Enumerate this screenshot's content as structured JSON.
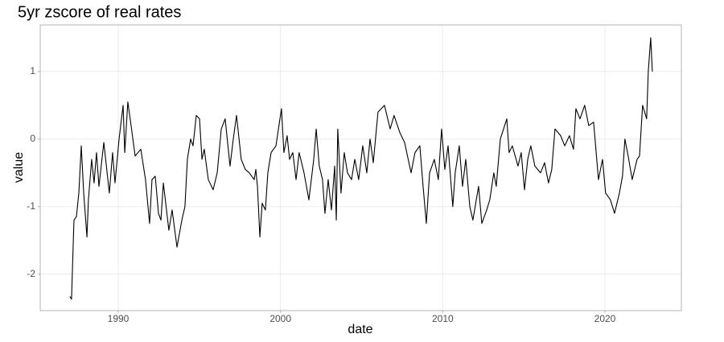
{
  "chart_data": {
    "type": "line",
    "title": "5yr zscore of real rates",
    "x_label": "date",
    "y_label": "value",
    "x": [
      1987.02,
      1987.12,
      1987.27,
      1987.42,
      1987.57,
      1987.72,
      1987.87,
      1988.07,
      1988.16,
      1988.36,
      1988.51,
      1988.66,
      1988.81,
      1989.11,
      1989.45,
      1989.65,
      1989.8,
      1990.05,
      1990.3,
      1990.4,
      1990.59,
      1990.79,
      1991.04,
      1991.39,
      1991.68,
      1991.93,
      1992.08,
      1992.28,
      1992.48,
      1992.63,
      1992.78,
      1993.12,
      1993.32,
      1993.62,
      1993.92,
      1994.11,
      1994.26,
      1994.46,
      1994.61,
      1994.81,
      1995.01,
      1995.16,
      1995.3,
      1995.55,
      1995.85,
      1996.1,
      1996.35,
      1996.59,
      1996.89,
      1997.09,
      1997.29,
      1997.58,
      1997.83,
      1998.08,
      1998.38,
      1998.48,
      1998.58,
      1998.73,
      1998.87,
      1999.07,
      1999.22,
      1999.42,
      1999.72,
      2000.06,
      2000.21,
      2000.41,
      2000.56,
      2000.76,
      2000.96,
      2001.15,
      2001.45,
      2001.75,
      2002.05,
      2002.2,
      2002.39,
      2002.59,
      2002.74,
      2002.94,
      2003.14,
      2003.34,
      2003.44,
      2003.53,
      2003.73,
      2003.93,
      2004.13,
      2004.38,
      2004.58,
      2004.82,
      2005.07,
      2005.32,
      2005.52,
      2005.72,
      2006.01,
      2006.41,
      2006.76,
      2007.0,
      2007.35,
      2007.65,
      2008.05,
      2008.29,
      2008.59,
      2008.79,
      2008.99,
      2009.19,
      2009.48,
      2009.73,
      2009.93,
      2010.13,
      2010.33,
      2010.62,
      2010.77,
      2011.02,
      2011.22,
      2011.42,
      2011.67,
      2011.86,
      2012.21,
      2012.41,
      2012.71,
      2012.9,
      2013.15,
      2013.3,
      2013.55,
      2013.95,
      2014.09,
      2014.29,
      2014.64,
      2014.84,
      2015.04,
      2015.24,
      2015.43,
      2015.68,
      2016.03,
      2016.28,
      2016.52,
      2016.72,
      2016.92,
      2017.27,
      2017.52,
      2017.81,
      2018.06,
      2018.21,
      2018.46,
      2018.75,
      2019.0,
      2019.3,
      2019.6,
      2019.85,
      2020.04,
      2020.34,
      2020.59,
      2020.89,
      2021.08,
      2021.23,
      2021.43,
      2021.68,
      2021.98,
      2022.13,
      2022.32,
      2022.57,
      2022.67,
      2022.82,
      2022.92
    ],
    "series": [
      {
        "color": "#000000",
        "values": [
          -2.33,
          -2.37,
          -1.2,
          -1.15,
          -0.8,
          -0.1,
          -0.8,
          -1.45,
          -0.9,
          -0.3,
          -0.65,
          -0.2,
          -0.7,
          -0.05,
          -0.8,
          -0.2,
          -0.65,
          0,
          0.5,
          -0.2,
          0.55,
          0.2,
          -0.25,
          -0.15,
          -0.6,
          -1.25,
          -0.6,
          -0.55,
          -1.1,
          -1.2,
          -0.65,
          -1.35,
          -1.05,
          -1.6,
          -1.2,
          -1.0,
          -0.3,
          0,
          -0.1,
          0.35,
          0.3,
          -0.3,
          -0.15,
          -0.6,
          -0.75,
          -0.5,
          0.15,
          0.3,
          -0.4,
          0,
          0.35,
          -0.3,
          -0.45,
          -0.5,
          -0.6,
          -0.45,
          -0.7,
          -1.45,
          -0.95,
          -1.05,
          -0.5,
          -0.2,
          -0.1,
          0.45,
          -0.2,
          0.05,
          -0.3,
          -0.2,
          -0.6,
          -0.2,
          -0.5,
          -0.9,
          -0.3,
          0.15,
          -0.4,
          -0.6,
          -1.1,
          -0.6,
          -1.05,
          -0.4,
          -1.2,
          0.15,
          -0.8,
          -0.2,
          -0.5,
          -0.6,
          -0.3,
          -0.6,
          -0.1,
          -0.5,
          0,
          -0.35,
          0.4,
          0.5,
          0.15,
          0.35,
          0.1,
          -0.05,
          -0.5,
          -0.2,
          -0.1,
          -0.7,
          -1.25,
          -0.5,
          -0.3,
          -0.6,
          0.15,
          -0.45,
          -0.1,
          -1.0,
          -0.5,
          -0.1,
          -0.7,
          -0.3,
          -1.0,
          -1.2,
          -0.7,
          -1.25,
          -1.05,
          -0.9,
          -0.5,
          -0.7,
          0,
          0.3,
          -0.2,
          -0.1,
          -0.4,
          -0.2,
          -0.75,
          -0.3,
          -0.1,
          -0.4,
          -0.5,
          -0.35,
          -0.65,
          -0.45,
          0.15,
          0.05,
          -0.1,
          0.05,
          -0.15,
          0.45,
          0.3,
          0.5,
          0.2,
          0.25,
          -0.6,
          -0.3,
          -0.8,
          -0.9,
          -1.1,
          -0.8,
          -0.55,
          0,
          -0.25,
          -0.6,
          -0.3,
          -0.25,
          0.5,
          0.3,
          1.0,
          1.5,
          1.0
        ]
      }
    ],
    "xlim": [
      1985.19,
      2024.71
    ],
    "ylim": [
      -2.54,
      1.69
    ],
    "xticks": [
      1990,
      2000,
      2010,
      2020
    ],
    "yticks": [
      -2,
      -1,
      0,
      1
    ],
    "grid": true
  }
}
